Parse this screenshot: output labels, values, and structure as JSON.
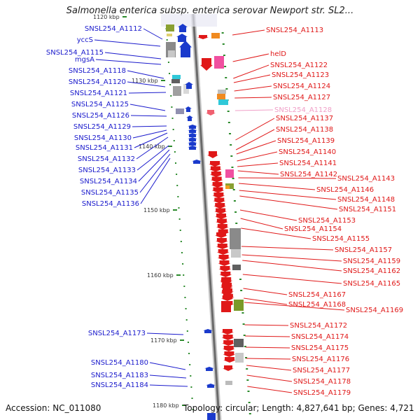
{
  "title": "Salmonella enterica subsp. enterica serovar Newport str. SL2...",
  "accession": "Accession: NC_011080",
  "summary": "Topology: circular; Length: 4,827,641 bp; Genes: 4,721",
  "colors": {
    "forward": "#1a1acc",
    "reverse": "#e01818",
    "highlight": "#f0a0c8"
  },
  "ruler_ticks": [
    {
      "text": "1120 kbp",
      "faded": true
    },
    {
      "text": "1130 kbp"
    },
    {
      "text": "1140 kbp"
    },
    {
      "text": "1150 kbp"
    },
    {
      "text": "1160 kbp"
    },
    {
      "text": "1170 kbp"
    },
    {
      "text": "1180 kbp"
    }
  ],
  "left_genes": [
    "SNSL254_A1112",
    "yccS",
    "SNSL254_A1115",
    "mgsA",
    "SNSL254_A1118",
    "SNSL254_A1120",
    "SNSL254_A1121",
    "SNSL254_A1125",
    "SNSL254_A1126",
    "SNSL254_A1129",
    "SNSL254_A1130",
    "SNSL254_A1131",
    "SNSL254_A1132",
    "SNSL254_A1133",
    "SNSL254_A1134",
    "SNSL254_A1135",
    "SNSL254_A1136",
    "SNSL254_A1173",
    "SNSL254_A1180",
    "SNSL254_A1183",
    "SNSL254_A1184"
  ],
  "right_genes": [
    "SNSL254_A1113",
    "helD",
    "SNSL254_A1122",
    "SNSL254_A1123",
    "SNSL254_A1124",
    "SNSL254_A1127",
    "SNSL254_A1128",
    "SNSL254_A1137",
    "SNSL254_A1138",
    "SNSL254_A1139",
    "SNSL254_A1140",
    "SNSL254_A1141",
    "SNSL254_A1142",
    "SNSL254_A1143",
    "SNSL254_A1146",
    "SNSL254_A1148",
    "SNSL254_A1151",
    "SNSL254_A1153",
    "SNSL254_A1154",
    "SNSL254_A1155",
    "SNSL254_A1157",
    "SNSL254_A1159",
    "SNSL254_A1162",
    "SNSL254_A1165",
    "SNSL254_A1167",
    "SNSL254_A1168",
    "SNSL254_A1169",
    "SNSL254_A1172",
    "SNSL254_A1174",
    "SNSL254_A1175",
    "SNSL254_A1176",
    "SNSL254_A1177",
    "SNSL254_A1178",
    "SNSL254_A1179"
  ],
  "highlighted_gene": "SNSL254_A1128"
}
